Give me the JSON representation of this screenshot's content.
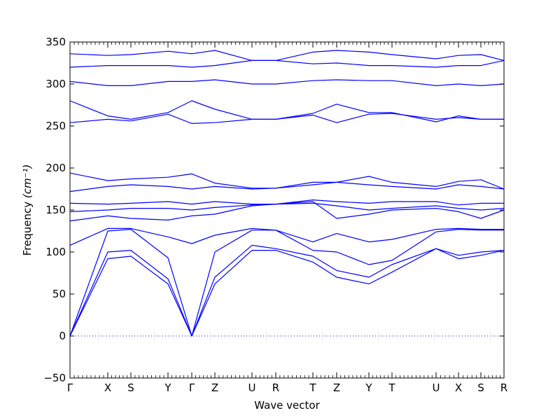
{
  "chart_data": {
    "type": "line",
    "title": "",
    "xlabel": "Wave vector",
    "ylabel": "Frequency",
    "ylabel_unit": "(cm⁻¹)",
    "ylim": [
      -50,
      350
    ],
    "yticks": [
      "−50",
      "0",
      "50",
      "100",
      "150",
      "200",
      "250",
      "300",
      "350"
    ],
    "ytick_values": [
      -50,
      0,
      50,
      100,
      150,
      200,
      250,
      300,
      350
    ],
    "x_labels": [
      "Γ",
      "X",
      "S",
      "Y",
      "Γ",
      "Z",
      "U",
      "R",
      "T",
      "Z",
      "Y",
      "T",
      "U",
      "X",
      "S",
      "R"
    ],
    "x_label_positions": [
      0,
      54,
      87,
      140,
      174,
      207,
      260,
      294,
      347,
      381,
      427,
      460,
      523,
      555,
      587,
      620
    ],
    "x_range": [
      0,
      620
    ],
    "zero_line": {
      "y": 0,
      "style": "dotted",
      "color": "#0000ff"
    },
    "line_color": "#0000ff",
    "legend": "none",
    "grid": false,
    "series": [
      {
        "x": [
          0,
          54,
          87,
          140,
          174,
          207,
          260,
          294,
          347,
          381,
          427,
          460,
          523,
          555,
          587,
          620
        ],
        "values": [
          0,
          92,
          95,
          62,
          0,
          62,
          102,
          102,
          88,
          70,
          62,
          76,
          104,
          92,
          96,
          102
        ]
      },
      {
        "x": [
          0,
          54,
          87,
          140,
          174,
          207,
          260,
          294,
          347,
          381,
          427,
          460,
          523,
          555,
          587,
          620
        ],
        "values": [
          0,
          100,
          102,
          68,
          0,
          70,
          108,
          104,
          95,
          78,
          70,
          85,
          104,
          96,
          100,
          102
        ]
      },
      {
        "x": [
          0,
          54,
          87,
          140,
          174,
          207,
          260,
          294,
          347,
          381,
          427,
          460,
          523,
          555,
          587,
          620
        ],
        "values": [
          0,
          125,
          127,
          93,
          0,
          100,
          126,
          126,
          102,
          100,
          85,
          90,
          124,
          127,
          126,
          126
        ]
      },
      {
        "x": [
          0,
          54,
          87,
          140,
          174,
          207,
          260,
          294,
          347,
          381,
          427,
          460,
          523,
          555,
          587,
          620
        ],
        "values": [
          108,
          128,
          128,
          118,
          110,
          120,
          128,
          126,
          112,
          122,
          112,
          115,
          127,
          128,
          127,
          127
        ]
      },
      {
        "x": [
          0,
          54,
          87,
          140,
          174,
          207,
          260,
          294,
          347,
          381,
          427,
          460,
          523,
          555,
          587,
          620
        ],
        "values": [
          137,
          143,
          140,
          138,
          143,
          145,
          155,
          157,
          160,
          140,
          145,
          150,
          152,
          148,
          140,
          150
        ]
      },
      {
        "x": [
          0,
          54,
          87,
          140,
          174,
          207,
          260,
          294,
          347,
          381,
          427,
          460,
          523,
          555,
          587,
          620
        ],
        "values": [
          148,
          150,
          152,
          152,
          150,
          153,
          156,
          157,
          158,
          155,
          150,
          152,
          155,
          152,
          150,
          152
        ]
      },
      {
        "x": [
          0,
          54,
          87,
          140,
          174,
          207,
          260,
          294,
          347,
          381,
          427,
          460,
          523,
          555,
          587,
          620
        ],
        "values": [
          158,
          157,
          158,
          160,
          157,
          160,
          157,
          157,
          162,
          160,
          158,
          160,
          160,
          156,
          158,
          158
        ]
      },
      {
        "x": [
          0,
          54,
          87,
          140,
          174,
          207,
          260,
          294,
          347,
          381,
          427,
          460,
          523,
          555,
          587,
          620
        ],
        "values": [
          172,
          178,
          180,
          178,
          175,
          178,
          175,
          176,
          180,
          183,
          180,
          178,
          175,
          180,
          178,
          175
        ]
      },
      {
        "x": [
          0,
          54,
          87,
          140,
          174,
          207,
          260,
          294,
          347,
          381,
          427,
          460,
          523,
          555,
          587,
          620
        ],
        "values": [
          194,
          185,
          187,
          189,
          193,
          182,
          176,
          176,
          183,
          183,
          190,
          183,
          178,
          184,
          186,
          175
        ]
      },
      {
        "x": [
          0,
          54,
          87,
          140,
          174,
          207,
          260,
          294,
          347,
          381,
          427,
          460,
          523,
          555,
          587,
          620
        ],
        "values": [
          254,
          258,
          256,
          264,
          253,
          254,
          258,
          258,
          263,
          254,
          264,
          265,
          258,
          260,
          258,
          258
        ]
      },
      {
        "x": [
          0,
          54,
          87,
          140,
          174,
          207,
          260,
          294,
          347,
          381,
          427,
          460,
          523,
          555,
          587,
          620
        ],
        "values": [
          280,
          262,
          258,
          266,
          280,
          270,
          258,
          258,
          265,
          276,
          266,
          266,
          255,
          262,
          258,
          258
        ]
      },
      {
        "x": [
          0,
          54,
          87,
          140,
          174,
          207,
          260,
          294,
          347,
          381,
          427,
          460,
          523,
          555,
          587,
          620
        ],
        "values": [
          303,
          298,
          298,
          303,
          303,
          305,
          300,
          300,
          304,
          305,
          304,
          304,
          298,
          300,
          298,
          300
        ]
      },
      {
        "x": [
          0,
          54,
          87,
          140,
          174,
          207,
          260,
          294,
          347,
          381,
          427,
          460,
          523,
          555,
          587,
          620
        ],
        "values": [
          320,
          322,
          322,
          322,
          320,
          322,
          328,
          328,
          324,
          325,
          322,
          322,
          320,
          322,
          322,
          328
        ]
      },
      {
        "x": [
          0,
          54,
          87,
          140,
          174,
          207,
          260,
          294,
          347,
          381,
          427,
          460,
          523,
          555,
          587,
          620
        ],
        "values": [
          336,
          334,
          335,
          339,
          336,
          340,
          328,
          328,
          338,
          340,
          338,
          335,
          330,
          334,
          335,
          328
        ]
      }
    ]
  }
}
